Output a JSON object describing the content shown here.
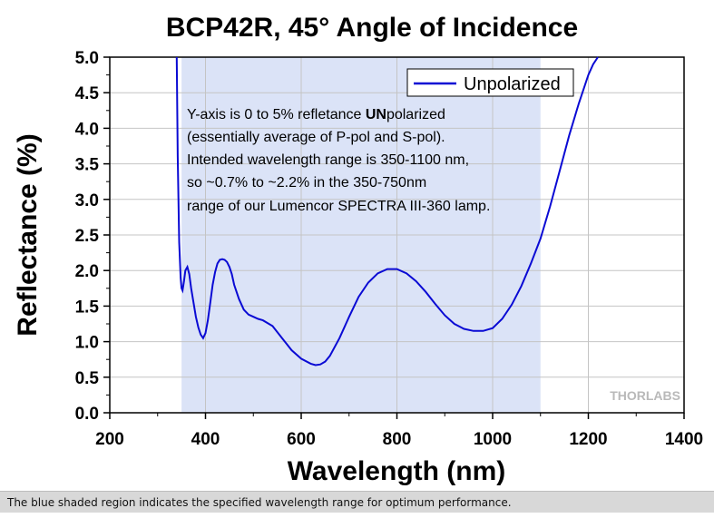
{
  "chart_data": {
    "type": "line",
    "title": "BCP42R, 45° Angle of Incidence",
    "xlabel": "Wavelength (nm)",
    "ylabel": "Reflectance (%)",
    "xlim": [
      200,
      1400
    ],
    "ylim": [
      0,
      5
    ],
    "xticks": [
      "200",
      "400",
      "600",
      "800",
      "1000",
      "1200",
      "1400"
    ],
    "yticks": [
      "0.0",
      "0.5",
      "1.0",
      "1.5",
      "2.0",
      "2.5",
      "3.0",
      "3.5",
      "4.0",
      "4.5",
      "5.0"
    ],
    "grid": true,
    "legend_position": "top-right",
    "shaded_region": {
      "x": [
        350,
        1100
      ],
      "color": "#dbe3f7"
    },
    "series": [
      {
        "name": "Unpolarized",
        "color": "#0a0ad4",
        "x": [
          340,
          342,
          345,
          348,
          350,
          352,
          355,
          358,
          362,
          366,
          370,
          375,
          380,
          385,
          390,
          395,
          400,
          405,
          410,
          415,
          420,
          425,
          430,
          435,
          440,
          445,
          450,
          455,
          460,
          470,
          480,
          490,
          500,
          510,
          520,
          540,
          560,
          580,
          600,
          620,
          630,
          640,
          650,
          660,
          680,
          700,
          720,
          740,
          760,
          780,
          800,
          820,
          840,
          860,
          880,
          900,
          920,
          940,
          960,
          980,
          1000,
          1020,
          1040,
          1060,
          1080,
          1100,
          1120,
          1140,
          1160,
          1180,
          1200,
          1210,
          1220
        ],
        "y": [
          5.0,
          3.6,
          2.4,
          1.9,
          1.75,
          1.72,
          1.85,
          2.0,
          2.05,
          1.95,
          1.75,
          1.55,
          1.35,
          1.2,
          1.1,
          1.05,
          1.12,
          1.3,
          1.55,
          1.8,
          1.98,
          2.1,
          2.15,
          2.16,
          2.15,
          2.12,
          2.05,
          1.95,
          1.8,
          1.6,
          1.45,
          1.38,
          1.35,
          1.32,
          1.3,
          1.22,
          1.05,
          0.88,
          0.76,
          0.69,
          0.67,
          0.68,
          0.72,
          0.8,
          1.05,
          1.35,
          1.63,
          1.83,
          1.96,
          2.02,
          2.02,
          1.96,
          1.85,
          1.7,
          1.53,
          1.37,
          1.25,
          1.18,
          1.15,
          1.15,
          1.19,
          1.32,
          1.52,
          1.78,
          2.1,
          2.45,
          2.9,
          3.4,
          3.9,
          4.35,
          4.75,
          4.9,
          5.0
        ]
      }
    ],
    "annotation_lines": [
      "Y-axis is 0 to 5% refletance ",
      "UN",
      "polarized",
      "(essentially average of P-pol and S-pol).",
      "Intended wavelength range is 350-1100 nm,",
      "so ~0.7% to ~2.2% in the 350-750nm",
      "range of our Lumencor SPECTRA III-360 lamp."
    ],
    "watermark": "THORLABS"
  },
  "caption": "The blue shaded region indicates the specified wavelength range for optimum performance."
}
